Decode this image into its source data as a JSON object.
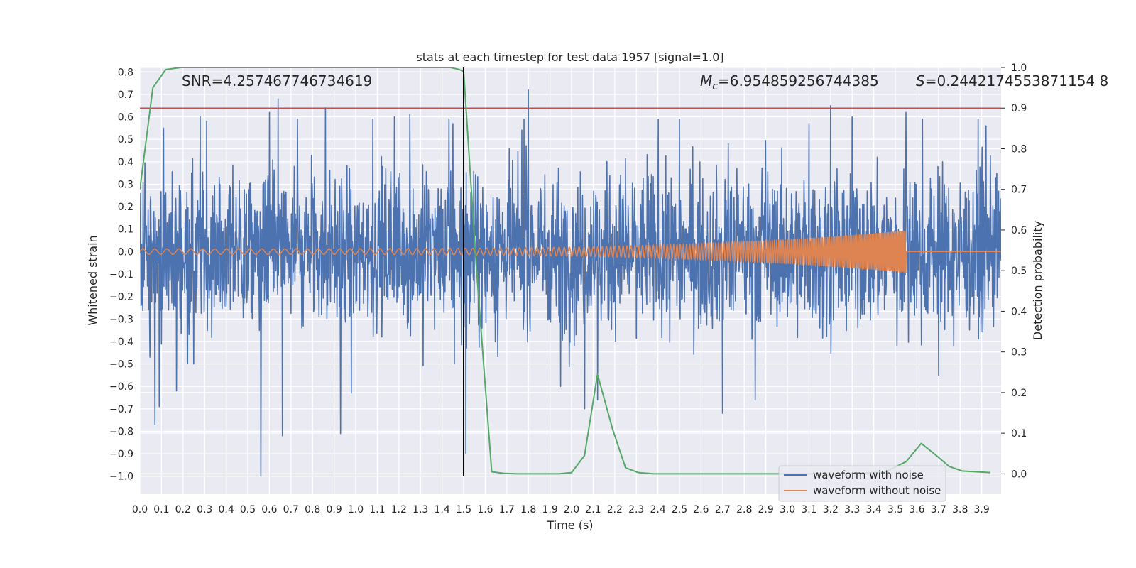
{
  "chart_data": {
    "type": "line",
    "title": "stats at each timestep for test data 1957 [signal=1.0]",
    "xlabel": "Time (s)",
    "ylabel": "Whitened strain",
    "y2label": "Detection probability",
    "xlim": [
      0.0,
      3.99
    ],
    "ylim": [
      -1.08,
      0.82
    ],
    "y2lim": [
      -0.05,
      1.0
    ],
    "x_ticks": [
      "0.0",
      "0.1",
      "0.2",
      "0.3",
      "0.4",
      "0.5",
      "0.6",
      "0.7",
      "0.8",
      "0.9",
      "1.0",
      "1.1",
      "1.2",
      "1.3",
      "1.4",
      "1.5",
      "1.6",
      "1.7",
      "1.8",
      "1.9",
      "2.0",
      "2.1",
      "2.2",
      "2.3",
      "2.4",
      "2.5",
      "2.6",
      "2.7",
      "2.8",
      "2.9",
      "3.0",
      "3.1",
      "3.2",
      "3.3",
      "3.4",
      "3.5",
      "3.6",
      "3.7",
      "3.8",
      "3.9"
    ],
    "y_ticks": [
      "0.8",
      "0.7",
      "0.6",
      "0.5",
      "0.4",
      "0.3",
      "0.2",
      "0.1",
      "0.0",
      "−0.1",
      "−0.2",
      "−0.3",
      "−0.4",
      "−0.5",
      "−0.6",
      "−0.7",
      "−0.8",
      "−0.9",
      "−1.0"
    ],
    "y2_ticks": [
      "1.0",
      "0.9",
      "0.8",
      "0.7",
      "0.6",
      "0.5",
      "0.4",
      "0.3",
      "0.2",
      "0.1",
      "0.0"
    ],
    "annotations": {
      "snr": "SNR=4.257467746734619",
      "mc_symbol": "M",
      "mc_sub": "c",
      "mc_value": "=6.954859256744385",
      "s_symbol": "S",
      "s_value": "=0.2442174553871154 8"
    },
    "legend": {
      "placement": "lower-right",
      "entries": [
        "waveform with noise",
        "waveform without noise"
      ]
    },
    "threshold": {
      "axis": "right",
      "value": 0.9
    },
    "marker_time": 1.5,
    "series": [
      {
        "name": "waveform with noise",
        "axis": "left",
        "kind": "noise",
        "x_range": [
          0.0,
          3.99
        ],
        "typical_amplitude": 0.4,
        "max": 0.72,
        "min": -1.0,
        "notable_spikes": [
          {
            "x": 0.07,
            "y": -0.77
          },
          {
            "x": 0.09,
            "y": -0.69
          },
          {
            "x": 0.17,
            "y": -0.62
          },
          {
            "x": 0.25,
            "y": -0.5
          },
          {
            "x": 0.28,
            "y": 0.6
          },
          {
            "x": 0.31,
            "y": 0.58
          },
          {
            "x": 0.56,
            "y": -1.0
          },
          {
            "x": 0.6,
            "y": 0.62
          },
          {
            "x": 0.64,
            "y": 0.68
          },
          {
            "x": 0.66,
            "y": -0.82
          },
          {
            "x": 0.73,
            "y": 0.59
          },
          {
            "x": 0.86,
            "y": 0.64
          },
          {
            "x": 0.93,
            "y": -0.81
          },
          {
            "x": 0.98,
            "y": -0.63
          },
          {
            "x": 1.08,
            "y": 0.59
          },
          {
            "x": 1.18,
            "y": 0.6
          },
          {
            "x": 1.25,
            "y": 0.61
          },
          {
            "x": 1.45,
            "y": 0.57
          },
          {
            "x": 1.51,
            "y": -0.9
          },
          {
            "x": 1.78,
            "y": 0.59
          },
          {
            "x": 1.8,
            "y": 0.72
          },
          {
            "x": 1.95,
            "y": -0.6
          },
          {
            "x": 2.06,
            "y": -0.7
          },
          {
            "x": 2.12,
            "y": -0.66
          },
          {
            "x": 2.5,
            "y": 0.59
          },
          {
            "x": 2.7,
            "y": -0.72
          },
          {
            "x": 2.85,
            "y": -0.66
          },
          {
            "x": 3.1,
            "y": 0.57
          },
          {
            "x": 3.2,
            "y": 0.65
          },
          {
            "x": 3.3,
            "y": 0.6
          },
          {
            "x": 3.55,
            "y": 0.62
          },
          {
            "x": 3.7,
            "y": -0.55
          },
          {
            "x": 3.92,
            "y": 0.56
          }
        ]
      },
      {
        "name": "waveform without noise",
        "axis": "left",
        "kind": "chirp",
        "x_range": [
          0.0,
          3.55
        ],
        "start_amplitude": 0.012,
        "end_amplitude": 0.095,
        "start_frequency_hz": 18,
        "end_frequency_hz": 160,
        "after_merger_value": 0.0,
        "after_merger_x_range": [
          3.55,
          3.99
        ]
      },
      {
        "axis": "right",
        "kind": "probability",
        "x": [
          0.0,
          0.06,
          0.12,
          0.19,
          1.25,
          1.44,
          1.48,
          1.5,
          1.56,
          1.63,
          1.69,
          1.75,
          1.94,
          2.0,
          2.06,
          2.12,
          2.19,
          2.25,
          2.31,
          2.38,
          2.5,
          3.25,
          3.45,
          3.55,
          3.62,
          3.69,
          3.75,
          3.81,
          3.94
        ],
        "y": [
          0.7,
          0.95,
          0.995,
          1.0,
          1.0,
          1.0,
          0.995,
          0.99,
          0.5,
          0.005,
          0.001,
          0.0,
          0.0,
          0.003,
          0.045,
          0.245,
          0.11,
          0.015,
          0.003,
          0.0,
          0.0,
          0.0,
          0.004,
          0.03,
          0.075,
          0.045,
          0.018,
          0.007,
          0.003
        ]
      }
    ]
  },
  "colors": {
    "plot_bg": "#eaeaf2",
    "grid": "#ffffff",
    "noise": "#4c72b0",
    "clean": "#dd8452",
    "probability": "#55a868",
    "threshold": "#c44e52",
    "marker": "#000000",
    "text": "#262626"
  }
}
